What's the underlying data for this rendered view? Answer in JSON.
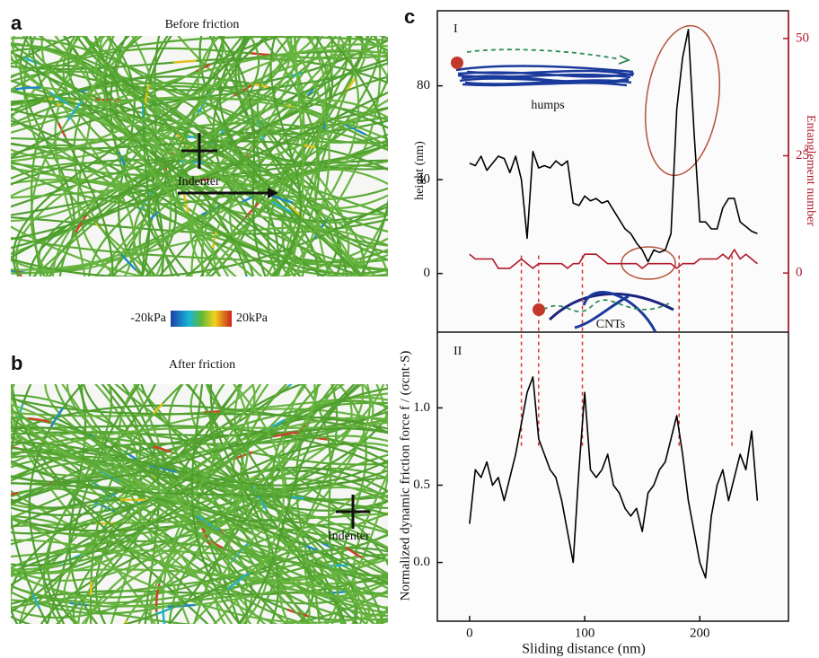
{
  "panel_a": {
    "label": "a",
    "title": "Before friction",
    "indenter": "Indenter"
  },
  "colorbar": {
    "min_label": "-20kPa",
    "max_label": "20kPa"
  },
  "panel_b": {
    "label": "b",
    "title": "After friction",
    "indenter": "Indenter"
  },
  "panel_c": {
    "label": "c"
  },
  "chart_data": [
    {
      "type": "line",
      "title": "I",
      "ylabel": "height (nm)",
      "y2label": "Entanglement number",
      "annotations": [
        "humps",
        "CNTs"
      ],
      "x": [
        0,
        5,
        10,
        15,
        20,
        25,
        30,
        35,
        40,
        45,
        50,
        55,
        60,
        65,
        70,
        75,
        80,
        85,
        90,
        95,
        100,
        105,
        110,
        115,
        120,
        125,
        130,
        135,
        140,
        145,
        150,
        155,
        160,
        165,
        170,
        175,
        180,
        185,
        190,
        195,
        200,
        205,
        210,
        215,
        220,
        225,
        230,
        235,
        240,
        245,
        250
      ],
      "xlim": [
        -28,
        277
      ],
      "ylim": [
        -25,
        112
      ],
      "yticks": [
        0,
        40,
        80
      ],
      "y2lim": [
        -12.6,
        55.9
      ],
      "y2ticks": [
        0,
        25,
        50
      ],
      "guides_x": [
        45,
        60,
        98,
        182,
        228
      ],
      "series": [
        {
          "color": "#000000",
          "values": [
            47,
            46,
            50,
            44,
            47,
            50,
            49,
            43,
            50,
            40,
            15,
            52,
            45,
            46,
            45,
            48,
            46,
            48,
            30,
            29,
            33,
            31,
            32,
            30,
            31,
            27,
            23,
            19,
            17,
            13,
            10,
            5,
            10,
            9,
            10,
            17,
            70,
            92,
            104,
            60,
            22,
            22,
            19,
            19,
            28,
            32,
            32,
            22,
            20,
            18,
            17
          ]
        },
        {
          "color": "#b0182a",
          "axis": "y2",
          "values": [
            4,
            3,
            3,
            3,
            3,
            1,
            1,
            1,
            2,
            3,
            2,
            1,
            2,
            2,
            2,
            2,
            2,
            1,
            2,
            2,
            4,
            4,
            4,
            3,
            2,
            2,
            2,
            2,
            2,
            2,
            1,
            2,
            2,
            2,
            2,
            2,
            1,
            2,
            2,
            2,
            3,
            3,
            3,
            3,
            4,
            3,
            5,
            3,
            4,
            3,
            2
          ]
        }
      ]
    },
    {
      "type": "line",
      "title": "II",
      "xlabel": "Sliding distance (nm)",
      "ylabel": "Normalized dynamic friction force f / (σcnt·S)",
      "x": [
        0,
        5,
        10,
        15,
        20,
        25,
        30,
        35,
        40,
        45,
        50,
        55,
        60,
        65,
        70,
        75,
        80,
        85,
        90,
        95,
        100,
        105,
        110,
        115,
        120,
        125,
        130,
        135,
        140,
        145,
        150,
        155,
        160,
        165,
        170,
        175,
        180,
        185,
        190,
        195,
        200,
        205,
        210,
        215,
        220,
        225,
        230,
        235,
        240,
        245,
        250
      ],
      "xlim": [
        -28,
        277
      ],
      "ylim": [
        -0.38,
        1.49
      ],
      "xticks": [
        0,
        100,
        200
      ],
      "yticks": [
        {
          "value": 0,
          "label": "0.0"
        },
        {
          "value": 0.5,
          "label": "0.5"
        },
        {
          "value": 1,
          "label": "1.0"
        }
      ],
      "series": [
        {
          "color": "#000000",
          "values": [
            0.25,
            0.6,
            0.55,
            0.65,
            0.5,
            0.55,
            0.4,
            0.55,
            0.7,
            0.9,
            1.1,
            1.2,
            0.8,
            0.7,
            0.6,
            0.55,
            0.4,
            0.2,
            0.0,
            0.6,
            1.1,
            0.6,
            0.55,
            0.6,
            0.7,
            0.5,
            0.45,
            0.35,
            0.3,
            0.35,
            0.2,
            0.45,
            0.5,
            0.6,
            0.65,
            0.8,
            0.95,
            0.7,
            0.4,
            0.2,
            0.0,
            -0.1,
            0.3,
            0.5,
            0.6,
            0.4,
            0.55,
            0.7,
            0.6,
            0.85,
            0.4
          ]
        }
      ]
    }
  ]
}
